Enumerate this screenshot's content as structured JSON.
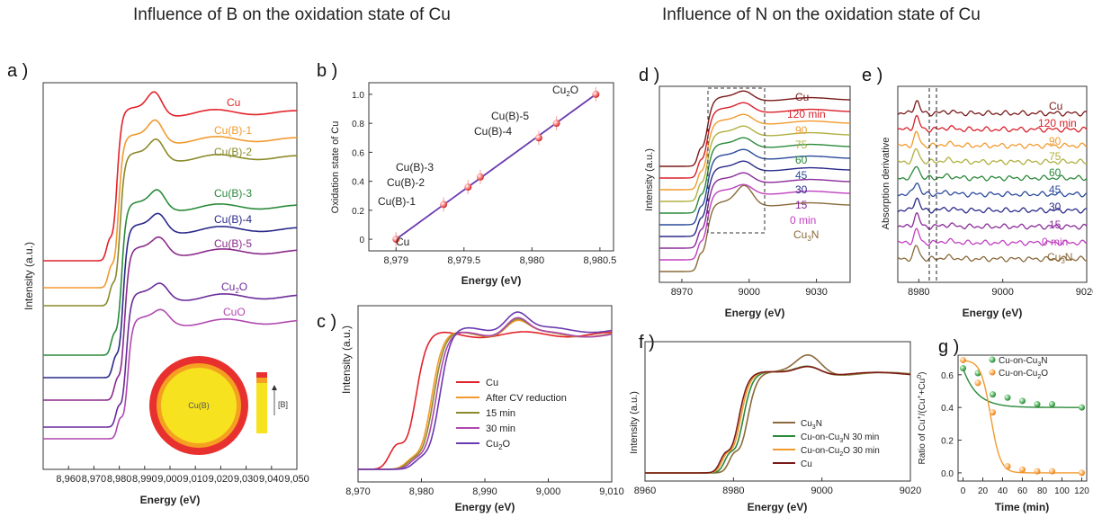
{
  "titles": {
    "left": "Influence of B on the oxidation state of Cu",
    "right": "Influence of N on the oxidation state of Cu"
  },
  "panel_letters": {
    "a": "a )",
    "b": "b )",
    "c": "c )",
    "d": "d )",
    "e": "e )",
    "f": "f )",
    "g": "g )"
  },
  "inset": {
    "core_label": "Cu(B)",
    "bar_label": "[B]"
  },
  "colors": {
    "red": "#e2222a",
    "orange": "#f29a2e",
    "olive": "#8a8a2a",
    "green": "#2a8a3a",
    "navy": "#2a2a8a",
    "purple": "#8a2a8a",
    "magenta": "#b048b0",
    "brown": "#8a5a3a",
    "darkred": "#7a1a1a",
    "violet": "#6a3ab0"
  },
  "chart_data": [
    {
      "id": "a",
      "type": "line",
      "xlabel": "Energy (eV)",
      "ylabel": "Intensity (a.u.)",
      "xlim": [
        8950,
        9050
      ],
      "xticks": [
        "8,960",
        "8,970",
        "8,980",
        "8,990",
        "9,000",
        "9,010",
        "9,020",
        "9,030",
        "9,040",
        "9,050"
      ],
      "series": [
        {
          "name": "Cu",
          "color": "#e2222a"
        },
        {
          "name": "Cu(B)-1",
          "color": "#f29a2e"
        },
        {
          "name": "Cu(B)-2",
          "color": "#8a8a2a"
        },
        {
          "name": "Cu(B)-3",
          "color": "#2a8a3a"
        },
        {
          "name": "Cu(B)-4",
          "color": "#2a2a8a"
        },
        {
          "name": "Cu(B)-5",
          "color": "#8a2a8a"
        },
        {
          "name": "Cu2O",
          "color": "#6a2a9a"
        },
        {
          "name": "CuO",
          "color": "#b048b0"
        }
      ],
      "labels": {
        "cu": "Cu",
        "b1": "Cu(B)-1",
        "b2": "Cu(B)-2",
        "b3": "Cu(B)-3",
        "b4": "Cu(B)-4",
        "b5": "Cu(B)-5",
        "cu2o": "Cu",
        "cu2o_sub": "2",
        "cu2o_tail": "O",
        "cuo": "CuO"
      }
    },
    {
      "id": "b",
      "type": "scatter",
      "xlabel": "Energy (eV)",
      "ylabel": "Oxidation state of Cu",
      "xlim": [
        8978.8,
        8980.6
      ],
      "ylim": [
        -0.08,
        1.08
      ],
      "xticks": [
        "8,979",
        "8,979.5",
        "8,980",
        "8,980.5"
      ],
      "yticks": [
        "0",
        "0.2",
        "0.4",
        "0.6",
        "0.8",
        "1.0"
      ],
      "points": [
        {
          "label": "Cu",
          "x": 8979.0,
          "y": 0.0
        },
        {
          "label": "Cu(B)-1",
          "x": 8979.35,
          "y": 0.24
        },
        {
          "label": "Cu(B)-2",
          "x": 8979.53,
          "y": 0.36
        },
        {
          "label": "Cu(B)-3",
          "x": 8979.62,
          "y": 0.43
        },
        {
          "label": "Cu(B)-4",
          "x": 8980.05,
          "y": 0.7
        },
        {
          "label": "Cu(B)-5",
          "x": 8980.18,
          "y": 0.8
        },
        {
          "label": "Cu2O",
          "x": 8980.47,
          "y": 1.0
        }
      ],
      "fit": {
        "x": [
          8979.0,
          8980.47
        ],
        "y": [
          0.0,
          1.0
        ]
      },
      "labels": {
        "cu": "Cu",
        "b1": "Cu(B)-1",
        "b2": "Cu(B)-2",
        "b3": "Cu(B)-3",
        "b4": "Cu(B)-4",
        "b5": "Cu(B)-5",
        "cu2o": "Cu",
        "cu2o_sub": "2",
        "cu2o_tail": "O"
      }
    },
    {
      "id": "c",
      "type": "line",
      "xlabel": "Energy (eV)",
      "ylabel": "Intensity (a.u.)",
      "xlim": [
        8970,
        9010
      ],
      "xticks": [
        "8,970",
        "8,980",
        "8,990",
        "9,000",
        "9,010"
      ],
      "series": [
        {
          "name": "Cu",
          "color": "#e2222a"
        },
        {
          "name": "After CV reduction",
          "color": "#f29a2e"
        },
        {
          "name": "15 min",
          "color": "#8a8a2a"
        },
        {
          "name": "30 min",
          "color": "#b048b0"
        },
        {
          "name": "Cu2O",
          "color": "#6a3ab0"
        }
      ],
      "legend": {
        "cu": "Cu",
        "cv": "After CV reduction",
        "m15": "15 min",
        "m30": "30 min",
        "cu2o": "Cu",
        "cu2o_sub": "2",
        "cu2o_tail": "O"
      }
    },
    {
      "id": "d",
      "type": "line",
      "xlabel": "Energy (eV)",
      "ylabel": "Intensity (a.u.)",
      "xlim": [
        8960,
        9045
      ],
      "xticks": [
        "8970",
        "9000",
        "9030"
      ],
      "series": [
        {
          "name": "Cu",
          "color": "#7a1a1a"
        },
        {
          "name": "120 min",
          "color": "#d8202a"
        },
        {
          "name": "90",
          "color": "#f29a2e"
        },
        {
          "name": "75",
          "color": "#b0b040"
        },
        {
          "name": "60",
          "color": "#2a8a3a"
        },
        {
          "name": "45",
          "color": "#2a4a9a"
        },
        {
          "name": "30",
          "color": "#2a2a8a"
        },
        {
          "name": "15",
          "color": "#8a2a9a"
        },
        {
          "name": "0 min",
          "color": "#c040c0"
        },
        {
          "name": "Cu3N",
          "color": "#8a6a3a"
        }
      ],
      "labels": {
        "cu": "Cu",
        "m120": "120 min",
        "m90": "90",
        "m75": "75",
        "m60": "60",
        "m45": "45",
        "m30": "30",
        "m15": "15",
        "m0": "0 min",
        "cu3n": "Cu",
        "cu3n_sub": "3",
        "cu3n_tail": "N"
      }
    },
    {
      "id": "e",
      "type": "line",
      "xlabel": "Energy (eV)",
      "ylabel": "Absorption derivative",
      "xlim": [
        8975,
        9020
      ],
      "xticks": [
        "8980",
        "9000",
        "9020"
      ],
      "series": [
        {
          "name": "Cu",
          "color": "#7a1a1a"
        },
        {
          "name": "120 min",
          "color": "#d8202a"
        },
        {
          "name": "90",
          "color": "#f29a2e"
        },
        {
          "name": "75",
          "color": "#b0b040"
        },
        {
          "name": "60",
          "color": "#2a8a3a"
        },
        {
          "name": "45",
          "color": "#2a4a9a"
        },
        {
          "name": "30",
          "color": "#2a2a8a"
        },
        {
          "name": "15",
          "color": "#8a2a9a"
        },
        {
          "name": "0 min",
          "color": "#c040c0"
        },
        {
          "name": "Cu3N",
          "color": "#8a6a3a"
        }
      ],
      "labels": {
        "cu": "Cu",
        "m120": "120 min",
        "m90": "90",
        "m75": "75",
        "m60": "60",
        "m45": "45",
        "m30": "30",
        "m15": "15",
        "m0": "0 min",
        "cu3n": "Cu",
        "cu3n_sub": "3",
        "cu3n_tail": "N"
      }
    },
    {
      "id": "f",
      "type": "line",
      "xlabel": "Energy (eV)",
      "ylabel": "Intensity (a.u.)",
      "xlim": [
        8960,
        9020
      ],
      "xticks": [
        "8960",
        "8980",
        "9000",
        "9020"
      ],
      "series": [
        {
          "name": "Cu3N",
          "color": "#8a6a3a"
        },
        {
          "name": "Cu-on-Cu3N 30 min",
          "color": "#2a8a3a"
        },
        {
          "name": "Cu-on-Cu2O 30 min",
          "color": "#f29a2e"
        },
        {
          "name": "Cu",
          "color": "#7a1a1a"
        }
      ],
      "legend": {
        "l1": "Cu",
        "l1_sub": "3",
        "l1_tail": "N",
        "l2": "Cu-on-Cu",
        "l2_sub": "3",
        "l2_tail": "N 30 min",
        "l3": "Cu-on-Cu",
        "l3_sub": "2",
        "l3_tail": "O 30 min",
        "l4": "Cu"
      }
    },
    {
      "id": "g",
      "type": "scatter",
      "xlabel": "Time (min)",
      "ylabel": "Ratio of Cu+/(Cu+ + Cu0)",
      "xlim": [
        -5,
        125
      ],
      "ylim": [
        -0.05,
        0.72
      ],
      "xticks": [
        "0",
        "20",
        "40",
        "60",
        "80",
        "100",
        "120"
      ],
      "yticks": [
        "0.0",
        "0.2",
        "0.4",
        "0.6"
      ],
      "series": [
        {
          "name": "Cu-on-Cu3N",
          "color": "#2a8a3a",
          "x": [
            0,
            15,
            30,
            45,
            60,
            75,
            90,
            120
          ],
          "y": [
            0.64,
            0.61,
            0.48,
            0.46,
            0.44,
            0.42,
            0.42,
            0.4
          ]
        },
        {
          "name": "Cu-on-Cu2O",
          "color": "#f29a2e",
          "x": [
            0,
            15,
            30,
            45,
            60,
            75,
            90,
            120
          ],
          "y": [
            0.69,
            0.55,
            0.37,
            0.04,
            0.02,
            0.01,
            0.01,
            0.0
          ]
        }
      ],
      "legend": {
        "s1": "Cu-on-Cu",
        "s1_sub": "3",
        "s1_tail": "N",
        "s2": "Cu-on-Cu",
        "s2_sub": "2",
        "s2_tail": "O"
      },
      "ylabel_parts": {
        "a": "Ratio of Cu",
        "b": "+",
        "c": "/(Cu",
        "d": "+",
        "e": "+Cu",
        "f": "0",
        "g": ")"
      }
    }
  ]
}
